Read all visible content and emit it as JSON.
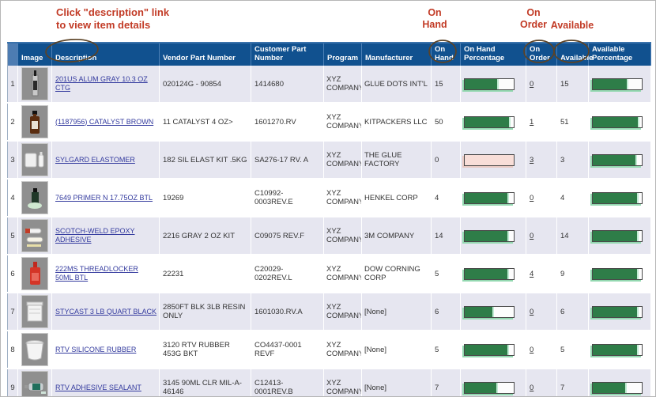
{
  "annotations": {
    "note_line1": "Click \"description\" link",
    "note_line2": "to view item details",
    "on_hand": {
      "line1": "On",
      "line2": "Hand"
    },
    "on_order": {
      "line1": "On",
      "line2": "Order"
    },
    "available_label": "Available"
  },
  "colors": {
    "header_bg": "#11518f",
    "header_corner_bg": "#4d7cb2",
    "row_alt_bg": "#e6e6f0",
    "bar_fill_green": "#2e7d48",
    "bar_empty_pink": "#f8ded8",
    "annotation_red": "#c23b26",
    "annotation_circle_brown": "#5c4326",
    "link_blue": "#333a9e"
  },
  "table": {
    "columns": [
      "",
      "Image",
      "Description",
      "Vendor Part Number",
      "Customer Part Number",
      "Program",
      "Manufacturer",
      "On Hand",
      "On Hand Percentage",
      "On Order",
      "Available",
      "Available Percentage"
    ],
    "rows": [
      {
        "num": "1",
        "thumb": "cartridge-tube",
        "description": "201US ALUM GRAY 10.3 OZ CTG",
        "vendor_part": "020124G - 90854",
        "customer_part": "1414680",
        "program": "XYZ COMPANY",
        "manufacturer": "GLUE DOTS INT'L",
        "on_hand": "15",
        "on_hand_pct": 70,
        "on_order": "0",
        "available": "15",
        "available_pct": 72
      },
      {
        "num": "2",
        "thumb": "brown-bottle",
        "description": "(1187956) CATALYST BROWN",
        "vendor_part": "11 CATALYST 4 OZ>",
        "customer_part": "1601270.RV",
        "program": "XYZ COMPANY",
        "manufacturer": "KITPACKERS LLC",
        "on_hand": "50",
        "on_hand_pct": 94,
        "on_order": "1",
        "available": "51",
        "available_pct": 95
      },
      {
        "num": "3",
        "thumb": "white-kit",
        "description": "SYLGARD ELASTOMER",
        "vendor_part": "182 SIL ELAST KIT .5KG",
        "customer_part": "SA276-17 RV. A",
        "program": "XYZ COMPANY",
        "manufacturer": "THE GLUE FACTORY",
        "on_hand": "0",
        "on_hand_pct": 0,
        "on_order": "3",
        "available": "3",
        "available_pct": 90
      },
      {
        "num": "4",
        "thumb": "primer-bottle",
        "description": "7649 PRIMER N 17.75OZ BTL",
        "vendor_part": "19269",
        "customer_part": "C10992-0003REV.E",
        "program": "XYZ COMPANY",
        "manufacturer": "HENKEL CORP",
        "on_hand": "4",
        "on_hand_pct": 90,
        "on_order": "0",
        "available": "4",
        "available_pct": 93
      },
      {
        "num": "5",
        "thumb": "epoxy-tubes",
        "description": "SCOTCH-WELD EPOXY ADHESIVE",
        "vendor_part": "2216 GRAY 2 OZ KIT",
        "customer_part": "C09075 REV.F",
        "program": "XYZ COMPANY",
        "manufacturer": "3M COMPANY",
        "on_hand": "14",
        "on_hand_pct": 90,
        "on_order": "0",
        "available": "14",
        "available_pct": 93
      },
      {
        "num": "6",
        "thumb": "red-bottle",
        "description": "222MS THREADLOCKER 50ML BTL",
        "vendor_part": "22231",
        "customer_part": "C20029-0202REV.L",
        "program": "XYZ COMPANY",
        "manufacturer": "DOW CORNING CORP",
        "on_hand": "5",
        "on_hand_pct": 90,
        "on_order": "4",
        "available": "9",
        "available_pct": 93
      },
      {
        "num": "7",
        "thumb": "square-pail",
        "description": "STYCAST 3 LB QUART BLACK",
        "vendor_part": "2850FT BLK 3LB RESIN ONLY",
        "customer_part": "1601030.RV.A",
        "program": "XYZ COMPANY",
        "manufacturer": "[None]",
        "on_hand": "6",
        "on_hand_pct": 60,
        "on_order": "0",
        "available": "6",
        "available_pct": 93
      },
      {
        "num": "8",
        "thumb": "round-tub",
        "description": "RTV SILICONE RUBBER",
        "vendor_part": "3120 RTV RUBBER 453G BKT",
        "customer_part": "CO4437-0001 REVF",
        "program": "XYZ COMPANY",
        "manufacturer": "[None]",
        "on_hand": "5",
        "on_hand_pct": 90,
        "on_order": "0",
        "available": "5",
        "available_pct": 93
      },
      {
        "num": "9",
        "thumb": "sealant-tube",
        "description": "RTV ADHESIVE SEALANT",
        "vendor_part": "3145 90ML CLR MIL-A-46146",
        "customer_part": "C12413-0001REV.B",
        "program": "XYZ COMPANY",
        "manufacturer": "[None]",
        "on_hand": "7",
        "on_hand_pct": 68,
        "on_order": "0",
        "available": "7",
        "available_pct": 70
      }
    ]
  }
}
